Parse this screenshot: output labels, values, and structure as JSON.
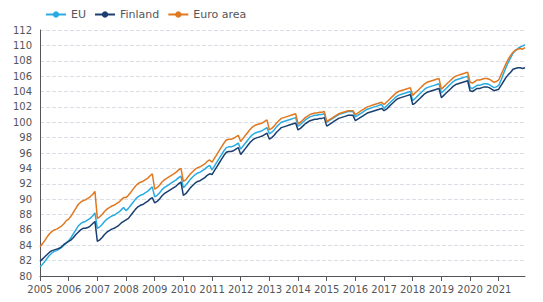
{
  "chart_data": {
    "type": "line",
    "categories": [
      "2005",
      null,
      null,
      null,
      null,
      null,
      null,
      null,
      null,
      null,
      null,
      null,
      "2006",
      null,
      null,
      null,
      null,
      null,
      null,
      null,
      null,
      null,
      null,
      null,
      "2007",
      null,
      null,
      null,
      null,
      null,
      null,
      null,
      null,
      null,
      null,
      null,
      "2008",
      null,
      null,
      null,
      null,
      null,
      null,
      null,
      null,
      null,
      null,
      null,
      "2009",
      null,
      null,
      null,
      null,
      null,
      null,
      null,
      null,
      null,
      null,
      null,
      "2010",
      null,
      null,
      null,
      null,
      null,
      null,
      null,
      null,
      null,
      null,
      null,
      "2011",
      null,
      null,
      null,
      null,
      null,
      null,
      null,
      null,
      null,
      null,
      null,
      "2012",
      null,
      null,
      null,
      null,
      null,
      null,
      null,
      null,
      null,
      null,
      null,
      "2013",
      null,
      null,
      null,
      null,
      null,
      null,
      null,
      null,
      null,
      null,
      null,
      "2014",
      null,
      null,
      null,
      null,
      null,
      null,
      null,
      null,
      null,
      null,
      null,
      "2015",
      null,
      null,
      null,
      null,
      null,
      null,
      null,
      null,
      null,
      null,
      null,
      "2016",
      null,
      null,
      null,
      null,
      null,
      null,
      null,
      null,
      null,
      null,
      null,
      "2017",
      null,
      null,
      null,
      null,
      null,
      null,
      null,
      null,
      null,
      null,
      null,
      "2018",
      null,
      null,
      null,
      null,
      null,
      null,
      null,
      null,
      null,
      null,
      null,
      "2019",
      null,
      null,
      null,
      null,
      null,
      null,
      null,
      null,
      null,
      null,
      null,
      "2020",
      null,
      null,
      null,
      null,
      null,
      null,
      null,
      null,
      null,
      null,
      null,
      "2021",
      null,
      null,
      null,
      null,
      null,
      null,
      null,
      null,
      null,
      null,
      null
    ],
    "ylim": [
      80,
      112
    ],
    "yticks": [
      80,
      82,
      84,
      86,
      88,
      90,
      92,
      94,
      96,
      98,
      100,
      102,
      104,
      106,
      108,
      110,
      112
    ],
    "grid": true,
    "legend": "upper left",
    "series": [
      {
        "name": "EU",
        "color": "#29ABE2",
        "values": [
          81.2,
          81.5,
          81.9,
          82.3,
          82.7,
          83.0,
          83.2,
          83.3,
          83.5,
          83.7,
          84.0,
          84.3,
          84.6,
          85.0,
          85.5,
          86.0,
          86.5,
          86.8,
          87.0,
          87.1,
          87.3,
          87.5,
          87.8,
          88.2,
          86.2,
          86.4,
          86.7,
          87.1,
          87.4,
          87.6,
          87.8,
          87.9,
          88.1,
          88.3,
          88.6,
          88.9,
          88.5,
          88.8,
          89.2,
          89.6,
          90.0,
          90.3,
          90.5,
          90.6,
          90.8,
          91.0,
          91.3,
          91.6,
          90.3,
          90.5,
          90.8,
          91.2,
          91.5,
          91.7,
          91.9,
          92.1,
          92.3,
          92.5,
          92.8,
          93.0,
          91.5,
          91.8,
          92.2,
          92.6,
          92.9,
          93.2,
          93.4,
          93.5,
          93.7,
          93.9,
          94.2,
          94.4,
          93.8,
          94.3,
          94.8,
          95.3,
          95.8,
          96.3,
          96.7,
          96.8,
          96.8,
          96.9,
          97.1,
          97.3,
          96.5,
          96.9,
          97.3,
          97.7,
          98.1,
          98.4,
          98.6,
          98.7,
          98.8,
          98.9,
          99.1,
          99.3,
          98.5,
          98.7,
          99.0,
          99.4,
          99.7,
          100.0,
          100.1,
          100.2,
          100.3,
          100.4,
          100.5,
          100.6,
          99.5,
          99.7,
          100.0,
          100.3,
          100.5,
          100.7,
          100.8,
          100.9,
          100.9,
          101.0,
          101.0,
          101.1,
          100.0,
          100.2,
          100.4,
          100.6,
          100.8,
          101.0,
          101.1,
          101.2,
          101.3,
          101.4,
          101.4,
          101.4,
          100.7,
          100.9,
          101.1,
          101.3,
          101.5,
          101.7,
          101.8,
          101.9,
          102.0,
          102.1,
          102.2,
          102.3,
          101.8,
          102.1,
          102.4,
          102.7,
          103.0,
          103.3,
          103.5,
          103.6,
          103.7,
          103.8,
          103.9,
          104.0,
          102.8,
          103.1,
          103.4,
          103.7,
          104.0,
          104.3,
          104.5,
          104.6,
          104.7,
          104.8,
          104.9,
          105.0,
          103.8,
          104.1,
          104.4,
          104.7,
          105.0,
          105.3,
          105.5,
          105.6,
          105.7,
          105.8,
          105.9,
          106.0,
          104.5,
          104.4,
          104.6,
          104.8,
          104.8,
          104.9,
          105.0,
          105.0,
          104.9,
          104.7,
          104.5,
          104.6,
          104.8,
          105.5,
          106.3,
          107.1,
          107.8,
          108.4,
          109.0,
          109.3,
          109.6,
          109.8,
          109.9,
          110.1
        ]
      },
      {
        "name": "Finland",
        "color": "#1A3F6F",
        "values": [
          81.9,
          82.2,
          82.5,
          82.8,
          83.1,
          83.3,
          83.4,
          83.5,
          83.6,
          83.8,
          84.1,
          84.3,
          84.5,
          84.7,
          85.0,
          85.4,
          85.7,
          86.0,
          86.2,
          86.2,
          86.3,
          86.5,
          86.8,
          87.1,
          84.5,
          84.7,
          85.0,
          85.4,
          85.7,
          85.9,
          86.1,
          86.2,
          86.4,
          86.6,
          86.9,
          87.1,
          87.3,
          87.5,
          87.9,
          88.3,
          88.7,
          89.0,
          89.2,
          89.3,
          89.5,
          89.7,
          90.0,
          90.2,
          89.5,
          89.7,
          90.0,
          90.4,
          90.7,
          90.9,
          91.1,
          91.3,
          91.5,
          91.7,
          92.0,
          92.2,
          90.5,
          90.7,
          91.1,
          91.5,
          91.8,
          92.1,
          92.3,
          92.4,
          92.6,
          92.8,
          93.1,
          93.3,
          93.2,
          93.7,
          94.2,
          94.7,
          95.2,
          95.7,
          96.1,
          96.2,
          96.2,
          96.3,
          96.5,
          96.7,
          95.8,
          96.2,
          96.6,
          97.0,
          97.4,
          97.7,
          97.9,
          98.0,
          98.1,
          98.2,
          98.4,
          98.6,
          97.8,
          98.0,
          98.3,
          98.7,
          99.0,
          99.3,
          99.4,
          99.5,
          99.6,
          99.7,
          99.8,
          99.9,
          99.0,
          99.2,
          99.5,
          99.8,
          100.0,
          100.2,
          100.3,
          100.4,
          100.4,
          100.5,
          100.5,
          100.6,
          99.5,
          99.7,
          99.9,
          100.1,
          100.3,
          100.5,
          100.6,
          100.7,
          100.8,
          100.9,
          100.9,
          100.9,
          100.2,
          100.4,
          100.6,
          100.8,
          101.0,
          101.2,
          101.3,
          101.4,
          101.5,
          101.6,
          101.7,
          101.8,
          101.5,
          101.7,
          102.0,
          102.3,
          102.6,
          102.9,
          103.1,
          103.2,
          103.3,
          103.4,
          103.5,
          103.6,
          102.3,
          102.5,
          102.8,
          103.1,
          103.4,
          103.7,
          103.9,
          104.0,
          104.1,
          104.2,
          104.3,
          104.4,
          103.2,
          103.5,
          103.8,
          104.1,
          104.4,
          104.7,
          104.9,
          105.0,
          105.1,
          105.2,
          105.3,
          105.4,
          104.1,
          104.0,
          104.2,
          104.4,
          104.4,
          104.5,
          104.6,
          104.6,
          104.5,
          104.3,
          104.1,
          104.2,
          104.3,
          104.8,
          105.3,
          105.8,
          106.2,
          106.5,
          106.9,
          107.0,
          107.1,
          107.1,
          107.0,
          107.1
        ]
      },
      {
        "name": "Euro area",
        "color": "#E07820",
        "values": [
          83.8,
          84.2,
          84.6,
          85.1,
          85.5,
          85.8,
          86.0,
          86.1,
          86.3,
          86.5,
          86.8,
          87.2,
          87.4,
          87.8,
          88.3,
          88.8,
          89.3,
          89.6,
          89.8,
          89.9,
          90.1,
          90.3,
          90.6,
          91.0,
          87.5,
          87.7,
          88.0,
          88.4,
          88.7,
          88.9,
          89.1,
          89.2,
          89.4,
          89.6,
          89.9,
          90.2,
          90.2,
          90.5,
          90.9,
          91.3,
          91.7,
          92.0,
          92.2,
          92.3,
          92.5,
          92.7,
          93.0,
          93.3,
          91.3,
          91.5,
          91.8,
          92.2,
          92.5,
          92.7,
          92.9,
          93.1,
          93.3,
          93.5,
          93.8,
          94.0,
          92.3,
          92.5,
          92.9,
          93.3,
          93.6,
          93.9,
          94.1,
          94.2,
          94.4,
          94.6,
          94.9,
          95.1,
          94.8,
          95.3,
          95.8,
          96.3,
          96.8,
          97.3,
          97.7,
          97.8,
          97.8,
          97.9,
          98.1,
          98.3,
          97.5,
          97.9,
          98.3,
          98.7,
          99.1,
          99.4,
          99.6,
          99.7,
          99.8,
          99.9,
          100.1,
          100.3,
          99.0,
          99.2,
          99.5,
          99.9,
          100.2,
          100.5,
          100.6,
          100.7,
          100.8,
          100.9,
          101.0,
          101.1,
          99.8,
          100.0,
          100.3,
          100.6,
          100.8,
          101.0,
          101.1,
          101.2,
          101.2,
          101.3,
          101.3,
          101.4,
          100.1,
          100.3,
          100.5,
          100.7,
          100.9,
          101.1,
          101.2,
          101.3,
          101.4,
          101.5,
          101.5,
          101.5,
          101.0,
          101.2,
          101.4,
          101.6,
          101.8,
          102.0,
          102.1,
          102.2,
          102.3,
          102.4,
          102.5,
          102.6,
          102.3,
          102.6,
          102.9,
          103.2,
          103.5,
          103.8,
          104.0,
          104.1,
          104.2,
          104.3,
          104.4,
          104.5,
          103.5,
          103.8,
          104.1,
          104.4,
          104.7,
          105.0,
          105.2,
          105.3,
          105.4,
          105.5,
          105.6,
          105.7,
          104.3,
          104.6,
          104.9,
          105.2,
          105.5,
          105.8,
          106.0,
          106.1,
          106.2,
          106.3,
          106.4,
          106.5,
          105.2,
          105.1,
          105.3,
          105.5,
          105.5,
          105.6,
          105.7,
          105.7,
          105.6,
          105.4,
          105.2,
          105.3,
          105.5,
          106.2,
          106.9,
          107.6,
          108.2,
          108.7,
          109.1,
          109.4,
          109.5,
          109.6,
          109.5,
          109.7
        ]
      }
    ]
  }
}
